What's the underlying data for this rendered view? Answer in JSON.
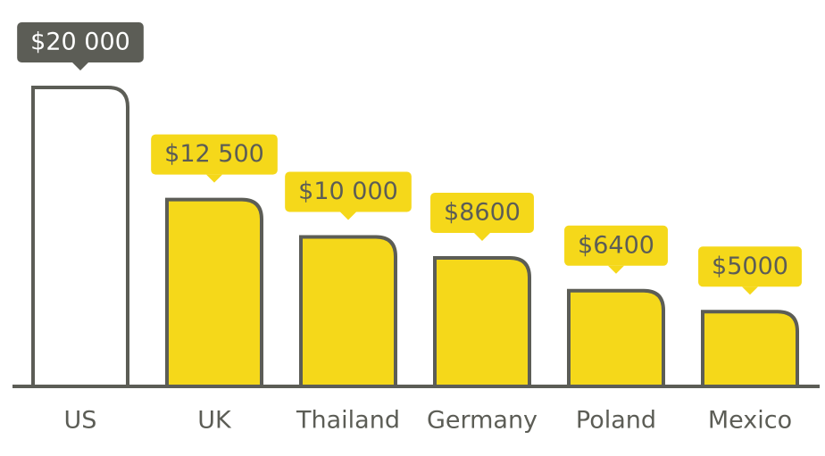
{
  "chart_data": {
    "type": "bar",
    "categories": [
      "US",
      "UK",
      "Thailand",
      "Germany",
      "Poland",
      "Mexico"
    ],
    "values": [
      20000,
      12500,
      10000,
      8600,
      6400,
      5000
    ],
    "value_labels": [
      "$20 000",
      "$12 500",
      "$10 000",
      "$8600",
      "$6400",
      "$5000"
    ],
    "colors": [
      "#ffffff",
      "#f5d81a",
      "#f5d81a",
      "#f5d81a",
      "#f5d81a",
      "#f5d81a"
    ],
    "label_box_colors": [
      "#5c5d56",
      "#f5d81a",
      "#f5d81a",
      "#f5d81a",
      "#f5d81a",
      "#f5d81a"
    ],
    "label_text_colors": [
      "#ffffff",
      "#5c5d56",
      "#5c5d56",
      "#5c5d56",
      "#5c5d56",
      "#5c5d56"
    ],
    "outline_color": "#5c5d56"
  }
}
